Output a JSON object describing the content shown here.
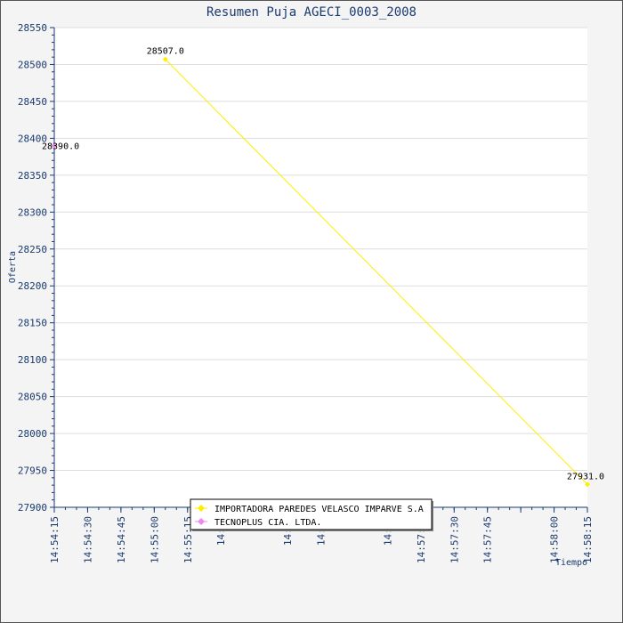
{
  "chart_data": {
    "type": "line",
    "title": "Resumen Puja AGECI_0003_2008",
    "xlabel": "Tiempo",
    "ylabel": "Oferta",
    "ylim": [
      27900,
      28550
    ],
    "y_ticks": [
      "27900",
      "27950",
      "28000",
      "28050",
      "28100",
      "28150",
      "28200",
      "28250",
      "28300",
      "28350",
      "28400",
      "28450",
      "28500",
      "28550"
    ],
    "x_ticks": [
      "14:54:15",
      "14:54:30",
      "14:54:45",
      "14:55:00",
      "14:55:15",
      "14:55:30",
      "14:55:45",
      "14:56:00",
      "14:56:15",
      "14:56:30",
      "14:56:45",
      "14:57:00",
      "14:57:15",
      "14:57:30",
      "14:57:45",
      "14:58:00",
      "14:58:15"
    ],
    "x_ticks_shown": [
      "14:54:15",
      "14:54:30",
      "14:54:45",
      "14:55:00",
      "14:55:15",
      "14:55",
      "14:56",
      "14:56",
      "14:57",
      "14:57:15",
      "14:57:30",
      "14:57:45",
      "14:58:00",
      "14:58:15"
    ],
    "grid": true,
    "legend_position": "bottom-center",
    "series": [
      {
        "name": "IMPORTADORA PAREDES VELASCO IMPARVE S.A",
        "color": "#ffee00",
        "points": [
          {
            "x": "14:55:05",
            "y": 28507.0,
            "label": "28507.0"
          },
          {
            "x": "14:58:15",
            "y": 27931.0,
            "label": "27931.0"
          }
        ]
      },
      {
        "name": "TECNOPLUS CIA. LTDA.",
        "color": "#ee88ee",
        "points": [
          {
            "x": "14:54:15",
            "y": 28390.0,
            "label": "28390.0"
          }
        ]
      }
    ]
  }
}
